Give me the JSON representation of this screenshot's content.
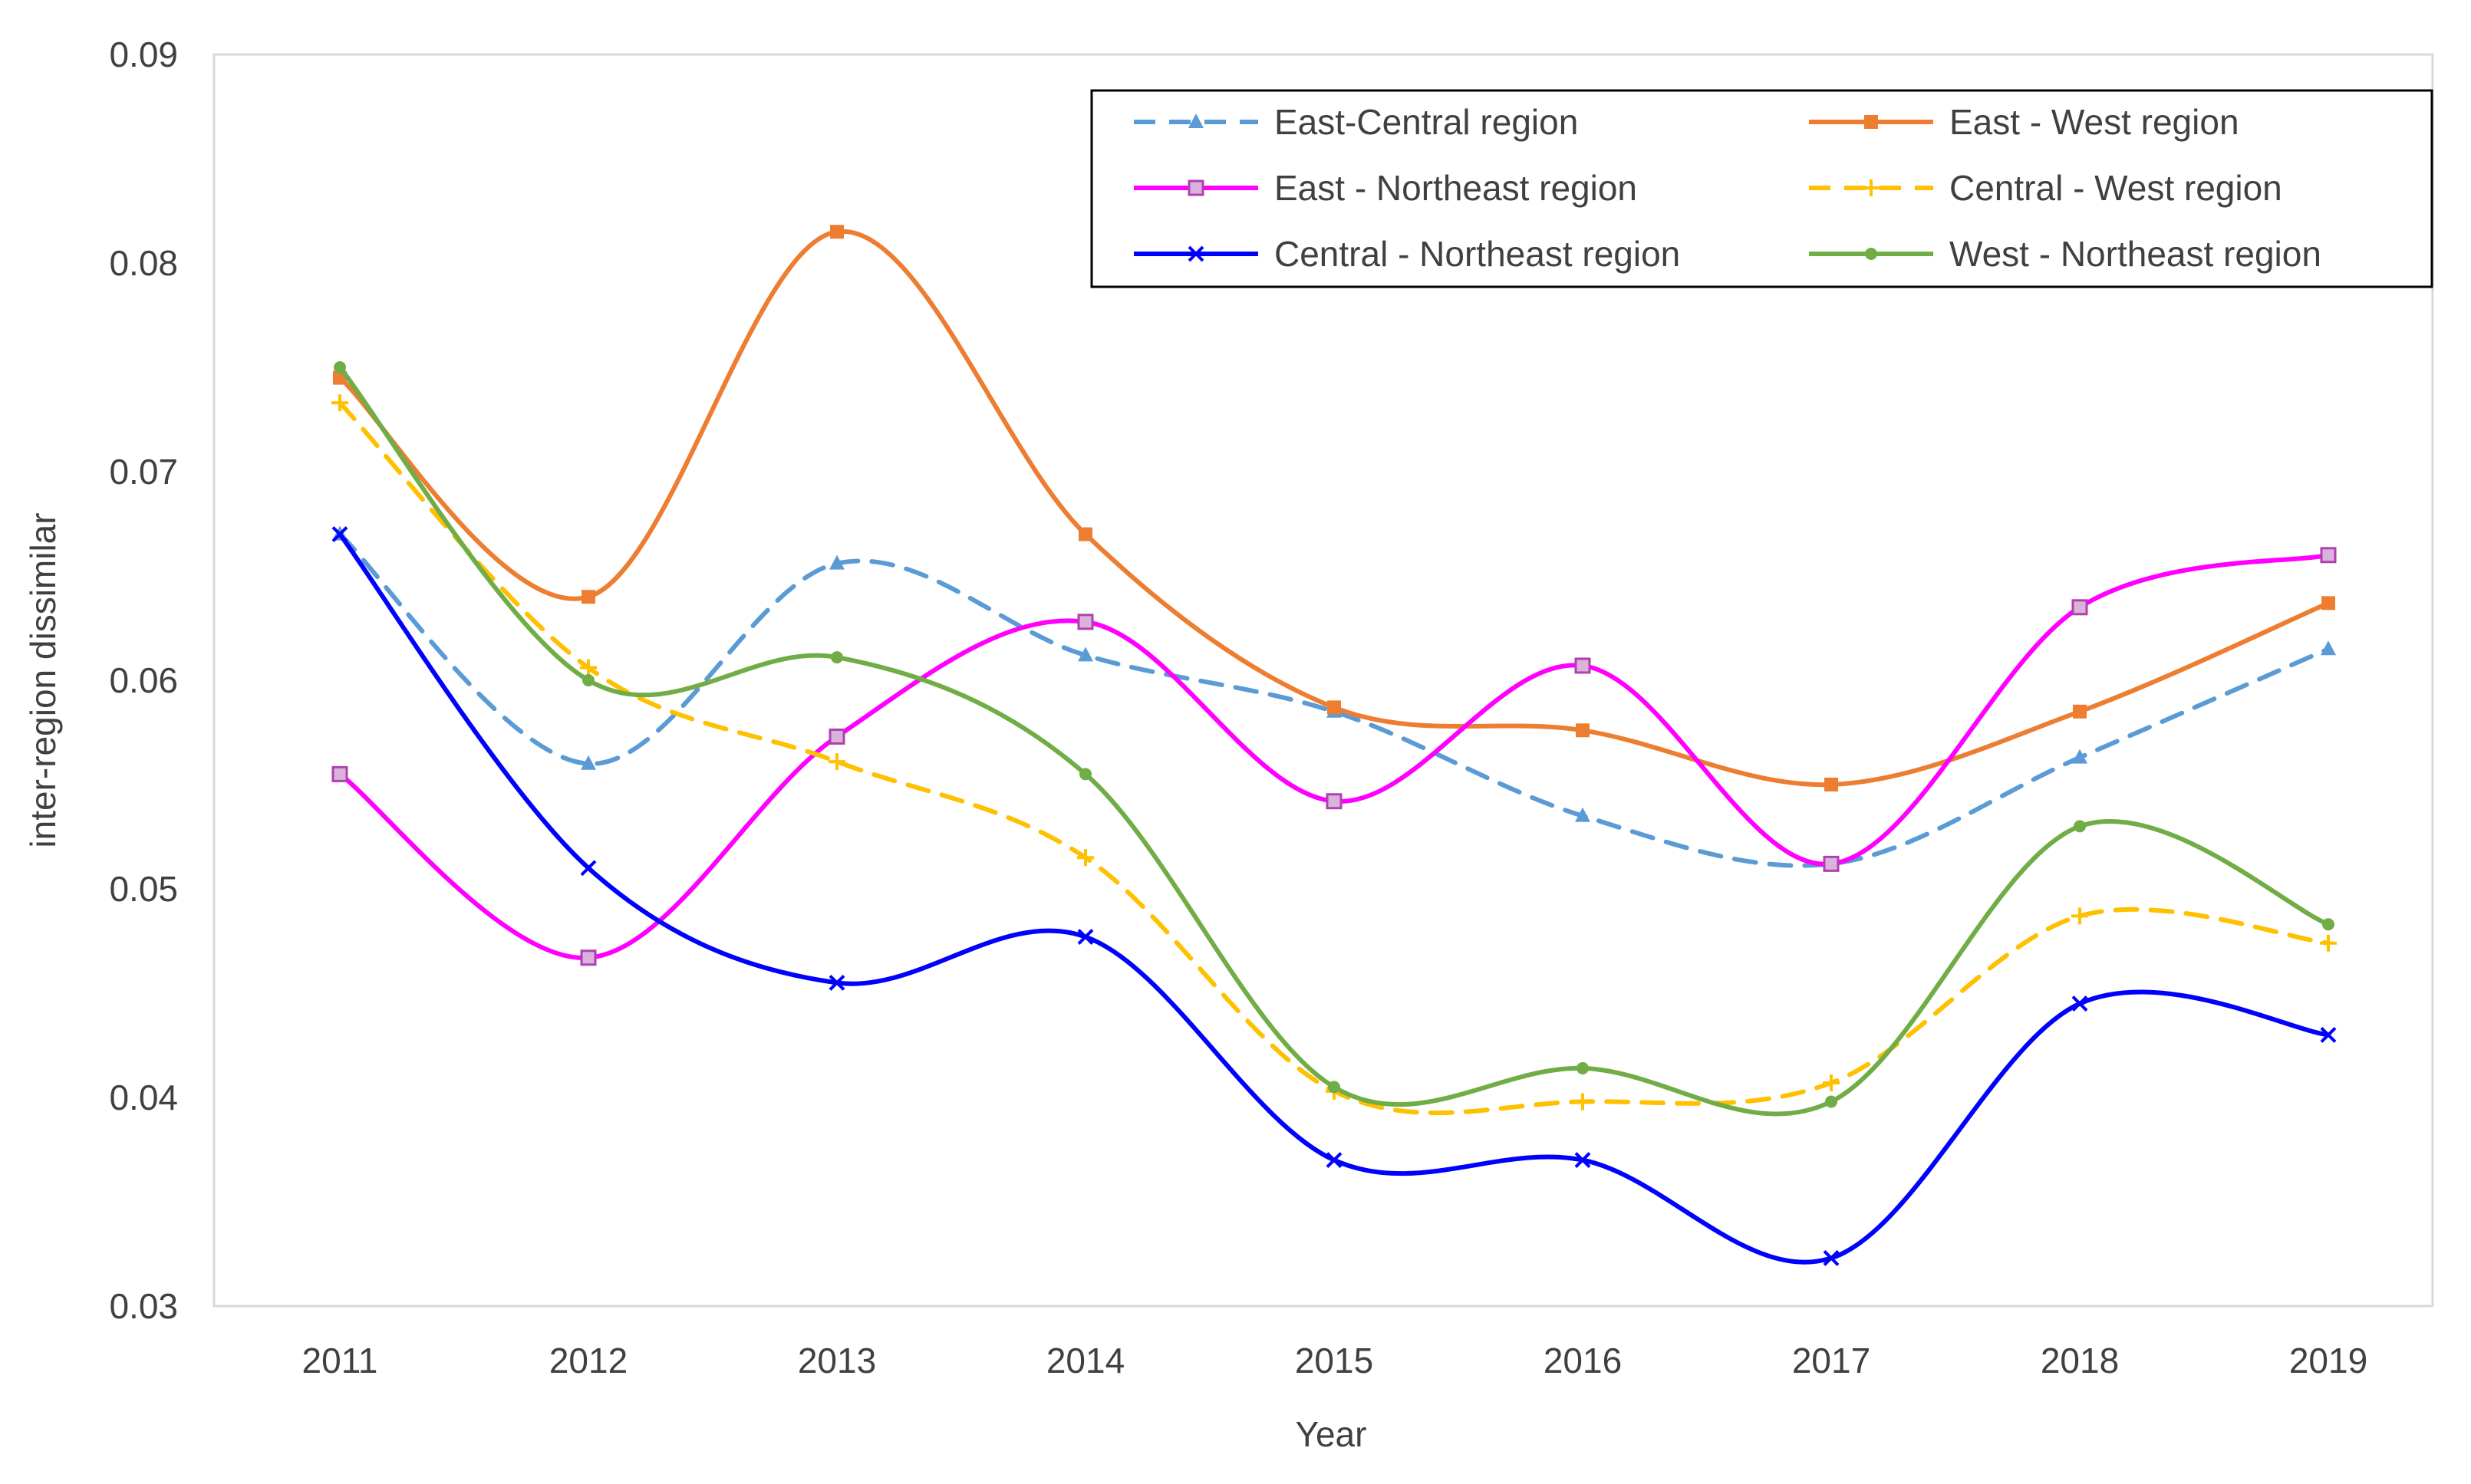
{
  "chart_data": {
    "type": "line",
    "title": "",
    "xlabel": "Year",
    "ylabel": "inter-region dissimilar",
    "categories": [
      "2011",
      "2012",
      "2013",
      "2014",
      "2015",
      "2016",
      "2017",
      "2018",
      "2019"
    ],
    "ylim": [
      0.03,
      0.09
    ],
    "yticks": [
      0.03,
      0.04,
      0.05,
      0.06,
      0.07,
      0.08,
      0.09
    ],
    "ytick_labels": [
      "0.03",
      "0.04",
      "0.05",
      "0.06",
      "0.07",
      "0.08",
      "0.09"
    ],
    "grid": false,
    "legend_position": "top-right",
    "series": [
      {
        "name": "East-Central region",
        "color": "#5b9bd5",
        "dashed": true,
        "marker": "triangle",
        "values": [
          0.067,
          0.056,
          0.0656,
          0.0612,
          0.0585,
          0.0535,
          0.0512,
          0.0563,
          0.0615
        ]
      },
      {
        "name": "East - West region",
        "color": "#ed7d31",
        "dashed": false,
        "marker": "square",
        "values": [
          0.0745,
          0.064,
          0.0815,
          0.067,
          0.0587,
          0.0576,
          0.055,
          0.0585,
          0.0637
        ]
      },
      {
        "name": "East - Northeast region",
        "color": "#ff00ff",
        "dashed": false,
        "marker": "square-open",
        "values": [
          0.0555,
          0.0467,
          0.0573,
          0.0628,
          0.0542,
          0.0607,
          0.0512,
          0.0635,
          0.066
        ]
      },
      {
        "name": "Central - West region",
        "color": "#ffc000",
        "dashed": true,
        "marker": "plus",
        "values": [
          0.0733,
          0.0606,
          0.0561,
          0.0515,
          0.0403,
          0.0398,
          0.0407,
          0.0487,
          0.0474
        ]
      },
      {
        "name": "Central - Northeast region",
        "color": "#0000ff",
        "dashed": false,
        "marker": "x",
        "values": [
          0.067,
          0.051,
          0.0455,
          0.0477,
          0.037,
          0.037,
          0.0323,
          0.0445,
          0.043
        ]
      },
      {
        "name": "West - Northeast region",
        "color": "#70ad47",
        "dashed": false,
        "marker": "dot",
        "values": [
          0.075,
          0.06,
          0.0611,
          0.0555,
          0.0405,
          0.0414,
          0.0398,
          0.053,
          0.0483
        ]
      }
    ]
  }
}
